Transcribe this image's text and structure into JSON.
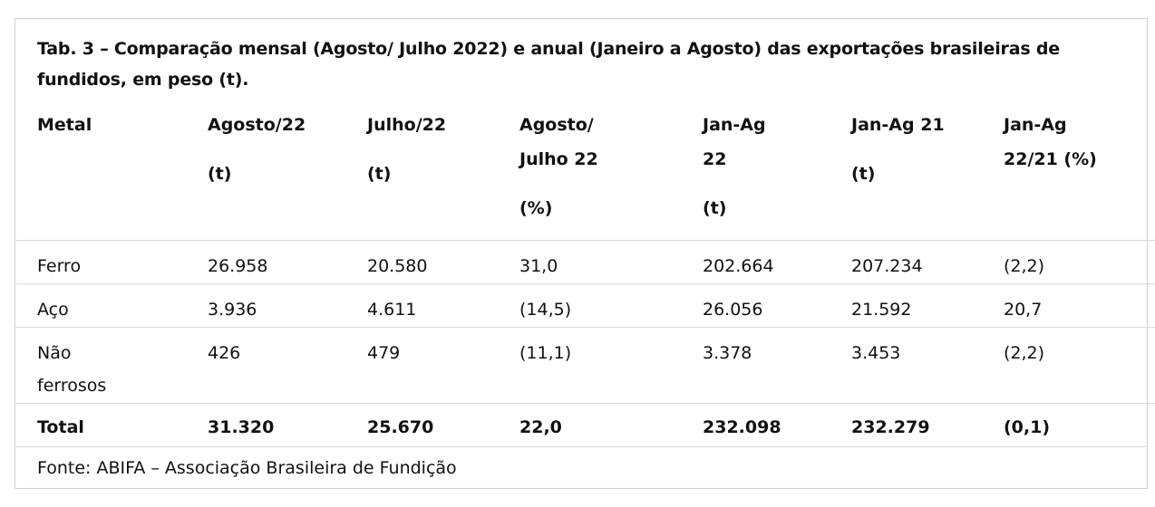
{
  "title": "Tab. 3 – Comparação mensal (Agosto/ Julho 2022) e anual (Janeiro a Agosto) das exportações brasileiras de fundidos, em peso (t).",
  "headers": [
    {
      "line1": "Metal",
      "line2": "",
      "line3": ""
    },
    {
      "line1": "Agosto/22",
      "line2": "",
      "line3": "(t)"
    },
    {
      "line1": "Julho/22",
      "line2": "",
      "line3": "(t)"
    },
    {
      "line1": "Agosto/",
      "line2": "Julho 22",
      "line3": "(%)"
    },
    {
      "line1": "Jan-Ag",
      "line2": "22",
      "line3": "(t)"
    },
    {
      "line1": "Jan-Ag 21",
      "line2": "",
      "line3": "(t)"
    },
    {
      "line1": "Jan-Ag",
      "line2": "22/21 (%)",
      "line3": ""
    }
  ],
  "rows": [
    {
      "metal": "Ferro",
      "ago22": "26.958",
      "jul22": "20.580",
      "ago_jul": "31,0",
      "janag22": "202.664",
      "janag21": "207.234",
      "var": "(2,2)"
    },
    {
      "metal": "Aço",
      "ago22": "3.936",
      "jul22": "4.611",
      "ago_jul": "(14,5)",
      "janag22": "26.056",
      "janag21": "21.592",
      "var": "20,7"
    },
    {
      "metal": "Não ferrosos",
      "ago22": "426",
      "jul22": "479",
      "ago_jul": "(11,1)",
      "janag22": "3.378",
      "janag21": "3.453",
      "var": "(2,2)"
    }
  ],
  "total": {
    "metal": "Total",
    "ago22": "31.320",
    "jul22": "25.670",
    "ago_jul": "22,0",
    "janag22": "232.098",
    "janag21": "232.279",
    "var": "(0,1)"
  },
  "source": "Fonte: ABIFA – Associação Brasileira de Fundição"
}
